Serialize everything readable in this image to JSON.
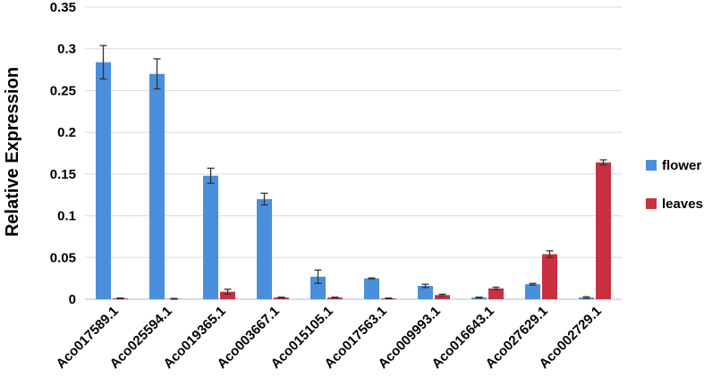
{
  "chart_data": {
    "type": "bar",
    "y_axis_label": "Relative Expression",
    "categories": [
      "Aco017589.1",
      "Aco025594.1",
      "Aco019365.1",
      "Aco003667.1",
      "Aco015105.1",
      "Aco017563.1",
      "Aco009993.1",
      "Aco016643.1",
      "Aco027629.1",
      "Aco002729.1"
    ],
    "series": [
      {
        "name": "flower",
        "color": "#4a8fdc",
        "values": [
          0.284,
          0.27,
          0.148,
          0.12,
          0.027,
          0.025,
          0.016,
          0.002,
          0.018,
          0.002
        ],
        "errors": [
          0.02,
          0.018,
          0.009,
          0.007,
          0.008,
          0.0005,
          0.002,
          0.0005,
          0.001,
          0.001
        ]
      },
      {
        "name": "leaves",
        "color": "#c8303f",
        "values": [
          0.001,
          0.0005,
          0.009,
          0.002,
          0.002,
          0.001,
          0.005,
          0.013,
          0.054,
          0.164
        ],
        "errors": [
          0.0005,
          0.0005,
          0.003,
          0.0005,
          0.0005,
          0.0005,
          0.001,
          0.0015,
          0.004,
          0.003
        ]
      }
    ],
    "ylim": [
      0,
      0.35
    ],
    "yticks": [
      0,
      0.05,
      0.1,
      0.15,
      0.2,
      0.25,
      0.3,
      0.35
    ],
    "grid": true,
    "legend": "right"
  }
}
